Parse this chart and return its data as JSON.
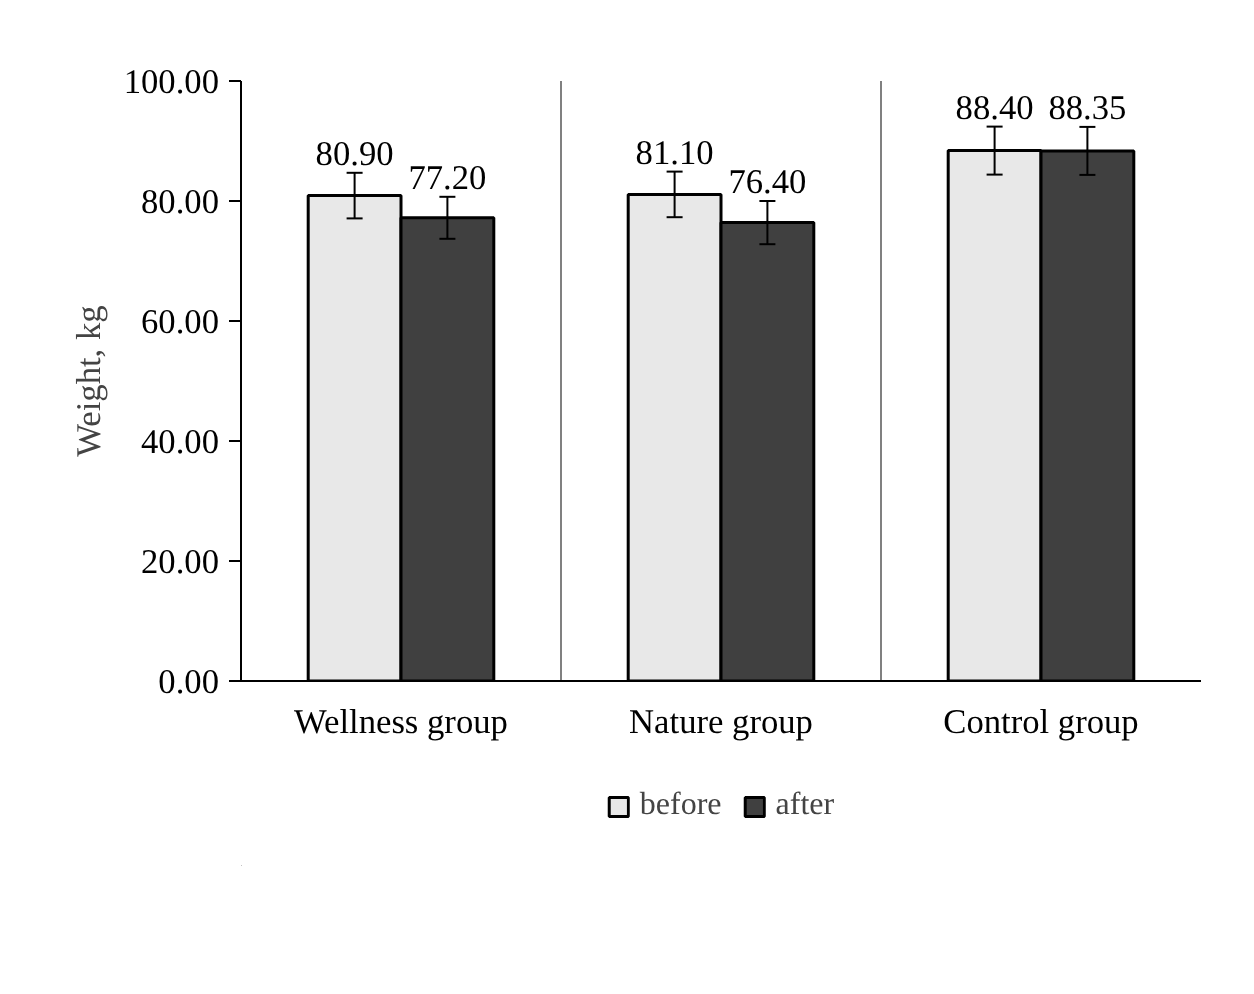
{
  "chart_data": {
    "type": "bar",
    "ylabel": "Weight, kg",
    "categories": [
      "Wellness group",
      "Nature group",
      "Control group"
    ],
    "series": [
      {
        "name": "before",
        "color": "#e8e8e8",
        "values": [
          80.9,
          81.1,
          88.4
        ],
        "errors": [
          3.8,
          3.8,
          4.0
        ],
        "value_labels": [
          "80.90",
          "81.10",
          "88.40"
        ]
      },
      {
        "name": "after",
        "color": "#404040",
        "values": [
          77.2,
          76.4,
          88.35
        ],
        "errors": [
          3.5,
          3.6,
          4.0
        ],
        "value_labels": [
          "77.20",
          "76.40",
          "88.35"
        ]
      }
    ],
    "ylim": [
      0,
      100
    ],
    "yticks": [
      {
        "value": 0,
        "label": "0.00"
      },
      {
        "value": 20,
        "label": "20.00"
      },
      {
        "value": 40,
        "label": "40.00"
      },
      {
        "value": 60,
        "label": "60.00"
      },
      {
        "value": 80,
        "label": "80.00"
      },
      {
        "value": 100,
        "label": "100.00"
      }
    ],
    "grid": "x",
    "legend": "bottom"
  }
}
